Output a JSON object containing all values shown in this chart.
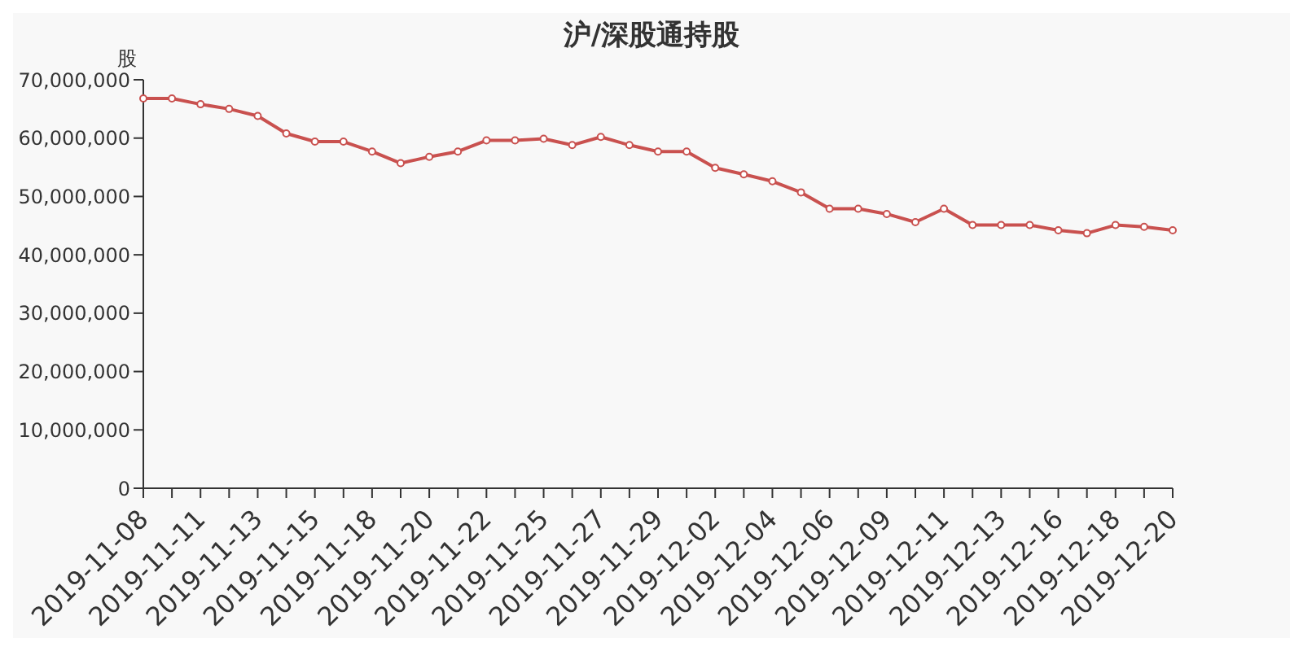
{
  "chart_data": {
    "type": "line",
    "title": "沪/深股通持股",
    "ylabel": "股",
    "categories": [
      "2019-11-08",
      null,
      "2019-11-11",
      null,
      "2019-11-13",
      null,
      "2019-11-15",
      null,
      "2019-11-18",
      null,
      "2019-11-20",
      null,
      "2019-11-22",
      null,
      "2019-11-25",
      null,
      "2019-11-27",
      null,
      "2019-11-29",
      null,
      "2019-12-02",
      null,
      "2019-12-04",
      null,
      "2019-12-06",
      null,
      "2019-12-09",
      null,
      "2019-12-11",
      null,
      "2019-12-13",
      null,
      "2019-12-16",
      null,
      "2019-12-18",
      null,
      "2019-12-20"
    ],
    "series": [
      {
        "color": "#c9514f",
        "values": [
          66800000,
          66800000,
          65800000,
          65000000,
          63800000,
          60800000,
          59400000,
          59400000,
          57700000,
          55700000,
          56800000,
          57700000,
          59600000,
          59600000,
          59900000,
          58800000,
          60200000,
          58800000,
          57700000,
          57700000,
          54900000,
          53800000,
          52600000,
          50700000,
          47900000,
          47900000,
          47000000,
          45600000,
          47900000,
          45100000,
          45100000,
          45100000,
          44200000,
          43700000,
          45100000,
          44800000,
          44200000
        ]
      }
    ],
    "ylim": [
      0,
      70000000
    ],
    "yticks": [
      0,
      {
        "value": 10000000,
        "label": "10,000,000"
      },
      {
        "value": 20000000,
        "label": "20,000,000"
      },
      {
        "value": 30000000,
        "label": "30,000,000"
      },
      {
        "value": 40000000,
        "label": "40,000,000"
      },
      {
        "value": 50000000,
        "label": "50,000,000"
      },
      {
        "value": 60000000,
        "label": "60,000,000"
      },
      {
        "value": 70000000,
        "label": "70,000,000"
      }
    ],
    "marker": "circle",
    "line_style": "solid",
    "grid": false,
    "legend": false
  }
}
